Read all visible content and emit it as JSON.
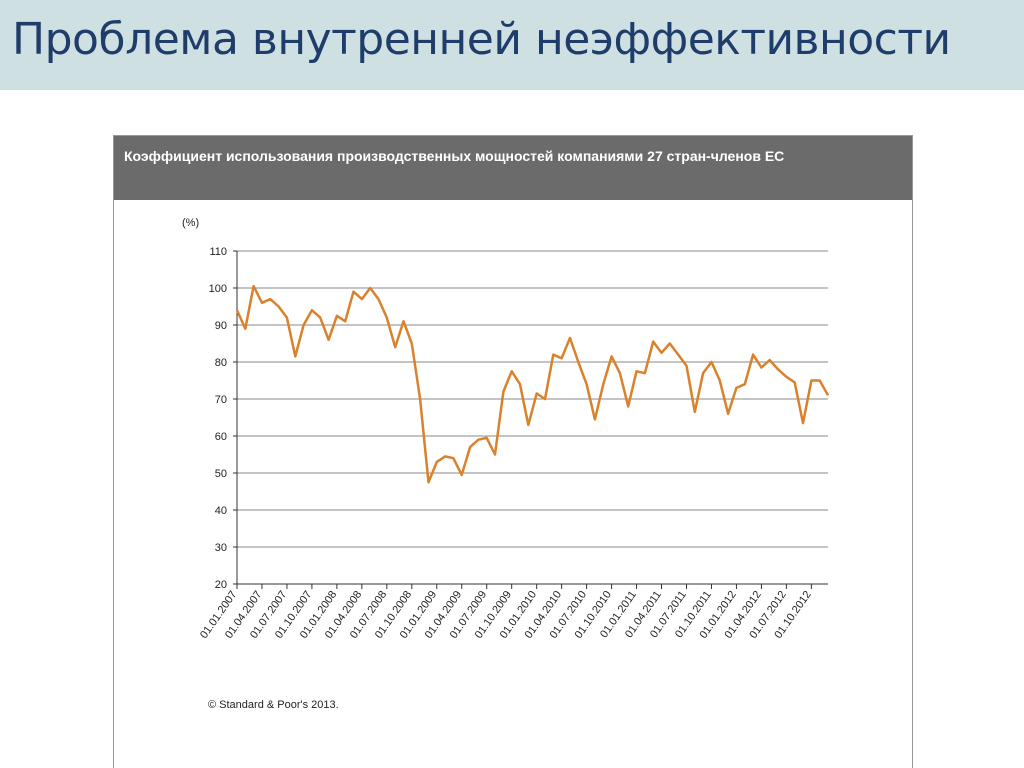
{
  "slide_title": "Проблема внутренней неэффективности",
  "chart_data": {
    "type": "line",
    "title": "Коэффициент использования производственных мощностей компаниями 27 стран-членов ЕС",
    "y_label": "(%)",
    "source": "© Standard & Poor's 2013.",
    "categories": [
      "01.01.2007",
      null,
      null,
      "01.04.2007",
      null,
      null,
      "01.07.2007",
      null,
      null,
      "01.10.2007",
      null,
      null,
      "01.01.2008",
      null,
      null,
      "01.04.2008",
      null,
      null,
      "01.07.2008",
      null,
      null,
      "01.10.2008",
      null,
      null,
      "01.01.2009",
      null,
      null,
      "01.04.2009",
      null,
      null,
      "01.07.2009",
      null,
      null,
      "01.10.2009",
      null,
      null,
      "01.01.2010",
      null,
      null,
      "01.04.2010",
      null,
      null,
      "01.07.2010",
      null,
      null,
      "01.10.2010",
      null,
      null,
      "01.01.2011",
      null,
      null,
      "01.04.2011",
      null,
      null,
      "01.07.2011",
      null,
      null,
      "01.10.2011",
      null,
      null,
      "01.01.2012",
      null,
      null,
      "01.04.2012",
      null,
      null,
      "01.07.2012",
      null,
      null,
      "01.10.2012",
      null,
      null
    ],
    "values": [
      94,
      89,
      100.5,
      96,
      97,
      95,
      92,
      81.5,
      90,
      94,
      92,
      86,
      92.5,
      91,
      99,
      97,
      100,
      97,
      92,
      84,
      91,
      85,
      70,
      47.5,
      53,
      54.5,
      54,
      49.5,
      57,
      59,
      59.5,
      55,
      72,
      77.5,
      74,
      63,
      71.5,
      70,
      82,
      81,
      86.5,
      80,
      74,
      64.5,
      74,
      81.5,
      77,
      68,
      77.5,
      77,
      85.5,
      82.5,
      85,
      82,
      79,
      66.5,
      77,
      80,
      75,
      66,
      73,
      74,
      82,
      78.5,
      80.5,
      78,
      76,
      74.5,
      63.5,
      75,
      75,
      71
    ],
    "color": "#d9822b",
    "ylim": [
      20,
      110
    ],
    "yticks": [
      20,
      30,
      40,
      50,
      60,
      70,
      80,
      90,
      100,
      110
    ],
    "grid": true
  }
}
